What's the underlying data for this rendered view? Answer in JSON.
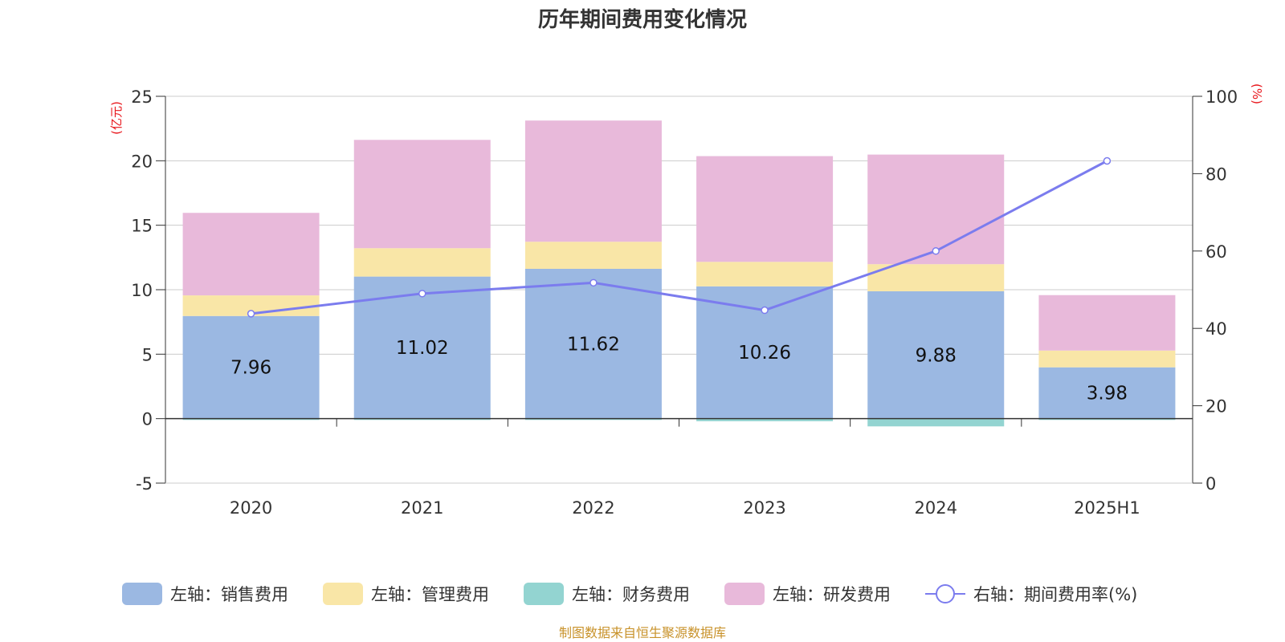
{
  "chart_data": {
    "type": "bar",
    "title": "历年期间费用变化情况",
    "categories": [
      "2020",
      "2021",
      "2022",
      "2023",
      "2024",
      "2025H1"
    ],
    "left_axis": {
      "unit": "(亿元)",
      "ylim": [
        -5,
        25
      ],
      "ticks": [
        -5,
        0,
        5,
        10,
        15,
        20,
        25
      ]
    },
    "right_axis": {
      "unit": "(%)",
      "ylim": [
        0,
        100
      ],
      "ticks": [
        0,
        20,
        40,
        60,
        80,
        100
      ]
    },
    "grid": true,
    "legend_position": "bottom",
    "series": [
      {
        "name": "左轴：销售费用",
        "axis": "left",
        "color": "#9bb8e2",
        "values": [
          7.96,
          11.02,
          11.62,
          10.26,
          9.88,
          3.98
        ],
        "labels": [
          "7.96",
          "11.02",
          "11.62",
          "10.26",
          "9.88",
          "3.98"
        ]
      },
      {
        "name": "左轴：管理费用",
        "axis": "left",
        "color": "#f9e6a7",
        "values": [
          1.6,
          2.2,
          2.1,
          1.9,
          2.1,
          1.3
        ]
      },
      {
        "name": "左轴：财务费用",
        "axis": "left",
        "color": "#93d4d1",
        "values": [
          -0.1,
          -0.1,
          -0.1,
          -0.2,
          -0.6,
          -0.1
        ]
      },
      {
        "name": "左轴：研发费用",
        "axis": "left",
        "color": "#e8b9da",
        "values": [
          6.4,
          8.4,
          9.4,
          8.2,
          8.5,
          4.3
        ]
      },
      {
        "name": "右轴：期间费用率(%)",
        "axis": "right",
        "type": "line",
        "color": "#7b7cee",
        "values": [
          43.8,
          49.0,
          51.8,
          44.7,
          60.0,
          83.3
        ]
      }
    ]
  },
  "source_note": "制图数据来自恒生聚源数据库"
}
